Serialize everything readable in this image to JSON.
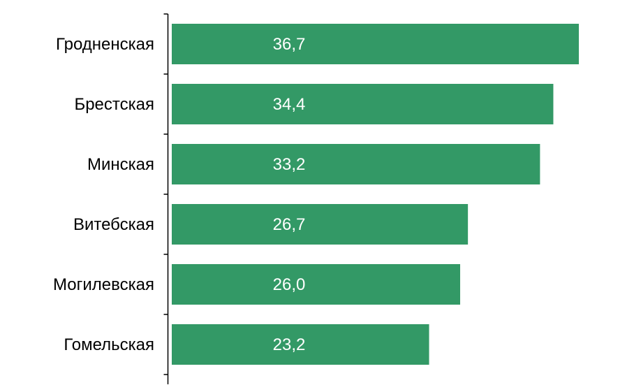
{
  "chart_data": {
    "type": "bar",
    "orientation": "horizontal",
    "categories": [
      "Гродненская",
      "Брестская",
      "Минская",
      "Витебская",
      "Могилевская",
      "Гомельская"
    ],
    "values": [
      36.7,
      34.4,
      33.2,
      26.7,
      26.0,
      23.2
    ],
    "value_labels": [
      "36,7",
      "34,4",
      "33,2",
      "26,7",
      "26,0",
      "23,2"
    ],
    "xlim": [
      0,
      40
    ],
    "grid": false,
    "legend": "none",
    "colors": {
      "bar": "#339966",
      "value_label": "#ffffff",
      "axis": "#000000"
    }
  }
}
